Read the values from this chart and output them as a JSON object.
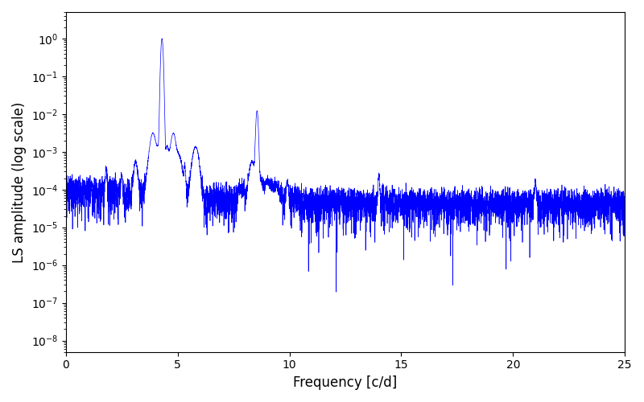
{
  "xlabel": "Frequency [c/d]",
  "ylabel": "LS amplitude (log scale)",
  "line_color": "#0000ff",
  "xlim": [
    0,
    25
  ],
  "ylim_bottom": 5e-09,
  "ylim_top": 5.0,
  "freq_min": 0.0,
  "freq_max": 25.0,
  "num_points": 6000,
  "main_peak_freq": 4.3,
  "main_peak_amp": 1.0,
  "secondary_peak_freq": 8.55,
  "secondary_peak_amp": 0.012,
  "noise_baseline": 5e-05,
  "background_color": "#ffffff",
  "linewidth": 0.5,
  "seed": 42
}
